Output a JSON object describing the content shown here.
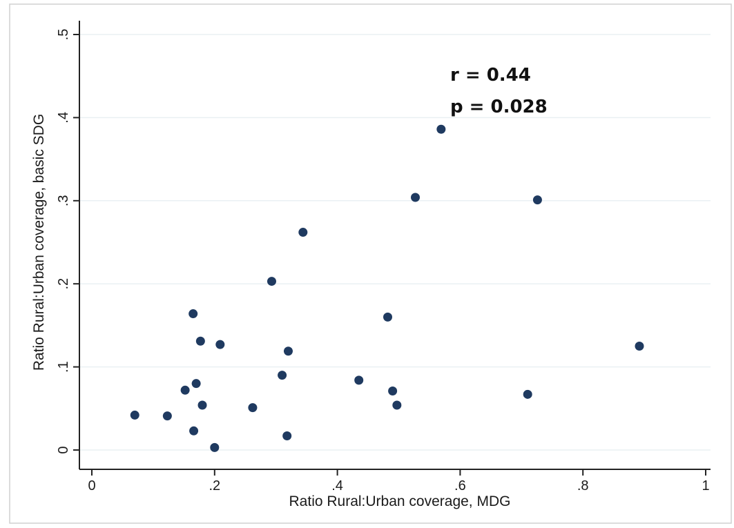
{
  "chart_data": {
    "type": "scatter",
    "title": "",
    "xlabel": "Ratio Rural:Urban coverage, MDG",
    "ylabel": "Ratio Rural:Urban coverage, basic SDG",
    "xlim": [
      0,
      1
    ],
    "ylim": [
      0,
      0.5
    ],
    "x_ticks": [
      0,
      0.2,
      0.4,
      0.6,
      0.8,
      1
    ],
    "x_tick_labels": [
      "0",
      ".2",
      ".4",
      ".6",
      ".8",
      "1"
    ],
    "y_ticks": [
      0,
      0.1,
      0.2,
      0.3,
      0.4,
      0.5
    ],
    "y_tick_labels": [
      "0",
      ".1",
      ".2",
      ".3",
      ".4",
      ".5"
    ],
    "grid": true,
    "annotations": [
      "r = 0.44",
      "p = 0.028"
    ],
    "marker_color": "#1f3a60",
    "points": [
      {
        "x": 0.07,
        "y": 0.042
      },
      {
        "x": 0.123,
        "y": 0.041
      },
      {
        "x": 0.152,
        "y": 0.072
      },
      {
        "x": 0.165,
        "y": 0.164
      },
      {
        "x": 0.166,
        "y": 0.023
      },
      {
        "x": 0.17,
        "y": 0.08
      },
      {
        "x": 0.177,
        "y": 0.131
      },
      {
        "x": 0.18,
        "y": 0.054
      },
      {
        "x": 0.2,
        "y": 0.003
      },
      {
        "x": 0.209,
        "y": 0.127
      },
      {
        "x": 0.262,
        "y": 0.051
      },
      {
        "x": 0.293,
        "y": 0.203
      },
      {
        "x": 0.31,
        "y": 0.09
      },
      {
        "x": 0.318,
        "y": 0.017
      },
      {
        "x": 0.32,
        "y": 0.119
      },
      {
        "x": 0.344,
        "y": 0.262
      },
      {
        "x": 0.435,
        "y": 0.084
      },
      {
        "x": 0.482,
        "y": 0.16
      },
      {
        "x": 0.49,
        "y": 0.071
      },
      {
        "x": 0.497,
        "y": 0.054
      },
      {
        "x": 0.527,
        "y": 0.304
      },
      {
        "x": 0.569,
        "y": 0.386
      },
      {
        "x": 0.71,
        "y": 0.067
      },
      {
        "x": 0.726,
        "y": 0.301
      },
      {
        "x": 0.892,
        "y": 0.125
      }
    ]
  }
}
